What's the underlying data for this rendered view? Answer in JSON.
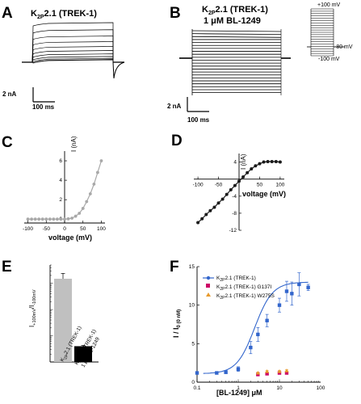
{
  "panels": {
    "A": {
      "label": "A",
      "title_main": "K",
      "title_sub": "2P",
      "title_rest": "2.1 (TREK-1)",
      "scale_y": "2 nA",
      "scale_x": "100 ms"
    },
    "B": {
      "label": "B",
      "title_line1_main": "K",
      "title_line1_sub": "2P",
      "title_line1_rest": "2.1 (TREK-1)",
      "title_line2": "1 μM BL-1249",
      "scale_y": "2 nA",
      "scale_x": "100 ms",
      "protocol_top": "+100 mV",
      "protocol_mid": "-80 mV",
      "protocol_bottom": "-100 mV"
    },
    "C": {
      "label": "C",
      "xlabel": "voltage (mV)",
      "ylabel": "I (nA)",
      "xticks": [
        "-100",
        "-50",
        "0",
        "50",
        "100"
      ],
      "yticks": [
        "0",
        "2",
        "4",
        "6"
      ]
    },
    "D": {
      "label": "D",
      "xlabel": "voltage (mV)",
      "ylabel": "I (nA)",
      "xticks": [
        "-100",
        "-50",
        "50",
        "100"
      ],
      "yticks": [
        "4",
        "-4",
        "-8",
        "-12"
      ]
    },
    "E": {
      "label": "E",
      "ylabel_main": "I",
      "ylabel_sub1": "+100mV",
      "ylabel_mid": "/I",
      "ylabel_sub2": "-100mV",
      "cat1_main": "K",
      "cat1_sub": "2P",
      "cat1_rest": "2.1 (TREK-1)",
      "cat2_line1_main": "K",
      "cat2_line1_sub": "2P",
      "cat2_line1_rest": "2.1 (TREK-1)",
      "cat2_line2": "1 μM BL-1249"
    },
    "F": {
      "label": "F",
      "xlabel": "[BL-1249] μM",
      "ylabel_main": "I / I",
      "ylabel_sub": "0 (0 nM)",
      "xticks": [
        "0.1",
        "1",
        "10",
        "100"
      ],
      "yticks": [
        "0",
        "5",
        "10",
        "15"
      ],
      "legend": [
        {
          "main": "K",
          "sub": "2P",
          "rest": "2.1 (TREK-1)"
        },
        {
          "main": "K",
          "sub": "2P",
          "rest": "2.1 (TREK-1) G137I"
        },
        {
          "main": "K",
          "sub": "2P",
          "rest": "2.1 (TREK-1) W275S"
        }
      ]
    }
  },
  "colors": {
    "C_series": "#a8a8a8",
    "D_series": "#1a1a1a",
    "F_wt": "#3366cc",
    "F_g137i": "#cc0066",
    "F_w275s": "#e89a2c",
    "E_bar1": "#c0c0c0",
    "E_bar2": "#000000"
  },
  "chart_data": [
    {
      "panel": "C",
      "type": "line",
      "xlabel": "voltage (mV)",
      "ylabel": "I (nA)",
      "xlim": [
        -110,
        110
      ],
      "ylim": [
        -0.4,
        7
      ],
      "x": [
        -100,
        -90,
        -80,
        -70,
        -60,
        -50,
        -40,
        -30,
        -20,
        -10,
        0,
        10,
        20,
        30,
        40,
        50,
        60,
        70,
        80,
        90,
        100
      ],
      "y": [
        0,
        0,
        0,
        0,
        0,
        0,
        0,
        0,
        0,
        0,
        0,
        0.03,
        0.1,
        0.3,
        0.6,
        1.1,
        1.8,
        2.6,
        3.6,
        4.8,
        6.0
      ]
    },
    {
      "panel": "D",
      "type": "line",
      "xlabel": "voltage (mV)",
      "ylabel": "I (nA)",
      "xlim": [
        -110,
        110
      ],
      "ylim": [
        -12,
        6
      ],
      "x": [
        -100,
        -90,
        -80,
        -70,
        -60,
        -50,
        -40,
        -30,
        -20,
        -10,
        0,
        10,
        20,
        30,
        40,
        50,
        60,
        70,
        80,
        90,
        100
      ],
      "y": [
        -10.2,
        -9.3,
        -8.3,
        -7.4,
        -6.6,
        -5.6,
        -4.7,
        -3.6,
        -2.5,
        -1.5,
        -0.5,
        0.5,
        1.5,
        2.4,
        3.1,
        3.6,
        4.0,
        4.1,
        4.1,
        4.1,
        4.0
      ]
    },
    {
      "panel": "E",
      "type": "bar",
      "categories": [
        "K2P2.1 (TREK-1)",
        "K2P2.1 (TREK-1) 1 μM BL-1249"
      ],
      "values": [
        150,
        0.4
      ],
      "errors": [
        90,
        0.03
      ],
      "ylim_log": [
        0.1,
        500
      ]
    },
    {
      "panel": "F",
      "type": "scatter",
      "xlabel": "[BL-1249] μM",
      "ylabel": "I / I0 (0 nM)",
      "xscale": "log",
      "xlim": [
        0.1,
        100
      ],
      "ylim": [
        0,
        15
      ],
      "series": [
        {
          "name": "K2P2.1 (TREK-1)",
          "x": [
            0.1,
            0.3,
            0.5,
            1,
            2,
            3,
            5,
            10,
            15,
            20,
            30,
            50
          ],
          "y": [
            1.2,
            1.2,
            1.3,
            1.7,
            4.5,
            6.2,
            8.0,
            10.0,
            11.8,
            11.5,
            12.7,
            12.3
          ],
          "err": [
            0.1,
            0.1,
            0.2,
            0.3,
            0.8,
            0.9,
            0.8,
            0.9,
            1.3,
            1.5,
            1.5,
            0.4
          ]
        },
        {
          "name": "K2P2.1 (TREK-1) G137I",
          "x": [
            3,
            5,
            10,
            15
          ],
          "y": [
            1.0,
            1.1,
            1.2,
            1.2
          ],
          "err": [
            0.1,
            0.1,
            0.1,
            0.1
          ]
        },
        {
          "name": "K2P2.1 (TREK-1) W275S",
          "x": [
            3,
            5,
            10,
            15
          ],
          "y": [
            1.2,
            1.4,
            1.4,
            1.5
          ],
          "err": [
            0.1,
            0.1,
            0.1,
            0.1
          ]
        }
      ],
      "fit": {
        "bottom": 1.1,
        "top": 13.0,
        "ec50": 2.5,
        "hill": 2.0
      }
    }
  ]
}
